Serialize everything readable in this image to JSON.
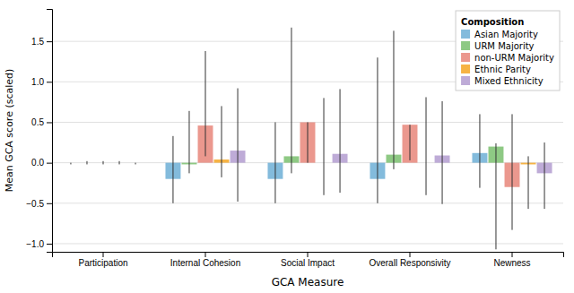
{
  "chart_data": {
    "type": "bar",
    "xlabel": "GCA Measure",
    "ylabel": "Mean GCA score (scaled)",
    "legend_title": "Composition",
    "categories": [
      "Participation",
      "Internal Cohesion",
      "Social Impact",
      "Overall Responsivity",
      "Newness"
    ],
    "series": [
      {
        "name": "Asian Majority",
        "color": "#6dafd6",
        "values": [
          0.0,
          -0.2,
          -0.2,
          -0.2,
          0.12
        ],
        "ci_lower": [
          -0.02,
          -0.5,
          -0.5,
          -0.5,
          -0.31
        ],
        "ci_upper": [
          0.0,
          0.33,
          0.5,
          1.3,
          0.6
        ]
      },
      {
        "name": "URM Majority",
        "color": "#7abf6e",
        "values": [
          0.0,
          -0.02,
          0.08,
          0.1,
          0.2
        ],
        "ci_lower": [
          -0.02,
          -0.13,
          -0.13,
          -0.08,
          -1.07
        ],
        "ci_upper": [
          0.02,
          0.64,
          1.67,
          1.63,
          0.24
        ]
      },
      {
        "name": "non-URM Majority",
        "color": "#e8867a",
        "values": [
          0.0,
          0.46,
          0.5,
          0.47,
          -0.3
        ],
        "ci_lower": [
          -0.02,
          0.08,
          0.0,
          0.03,
          -0.83
        ],
        "ci_upper": [
          0.02,
          1.38,
          0.5,
          0.47,
          0.6
        ]
      },
      {
        "name": "Ethnic Parity",
        "color": "#f5a623",
        "values": [
          0.0,
          0.04,
          0.0,
          0.0,
          -0.02
        ],
        "ci_lower": [
          -0.02,
          -0.18,
          -0.4,
          -0.4,
          -0.57
        ],
        "ci_upper": [
          0.02,
          0.7,
          0.8,
          0.81,
          0.08
        ]
      },
      {
        "name": "Mixed Ethnicity",
        "color": "#b39cd0",
        "values": [
          0.0,
          0.15,
          0.11,
          0.09,
          -0.13
        ],
        "ci_lower": [
          -0.02,
          -0.48,
          -0.37,
          -0.51,
          -0.57
        ],
        "ci_upper": [
          0.0,
          0.92,
          0.91,
          0.76,
          0.25
        ]
      }
    ],
    "ylim": [
      -1.1,
      1.9
    ],
    "yticks": [
      {
        "value": -1.0,
        "label": "−1.0"
      },
      {
        "value": -0.5,
        "label": "−0.5"
      },
      {
        "value": 0.0,
        "label": "0.0"
      },
      {
        "value": 0.5,
        "label": "0.5"
      },
      {
        "value": 1.0,
        "label": "1.0"
      },
      {
        "value": 1.5,
        "label": "1.5"
      }
    ],
    "grid": true,
    "legend": "upper right"
  }
}
